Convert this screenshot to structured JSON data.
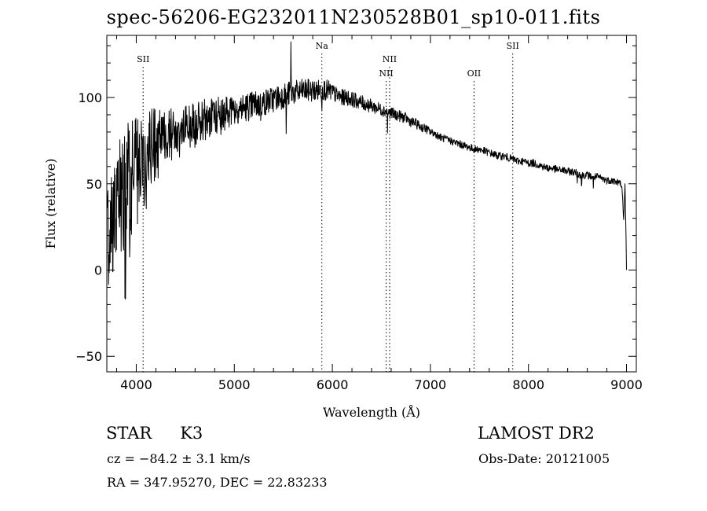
{
  "chart_data": {
    "type": "line",
    "title": "spec-56206-EG232011N230528B01_sp10-011.fits",
    "xlabel": "Wavelength (Å)",
    "ylabel": "Flux (relative)",
    "xlim": [
      3700,
      9100
    ],
    "ylim": [
      -59,
      136
    ],
    "xticks": [
      4000,
      5000,
      6000,
      7000,
      8000,
      9000
    ],
    "yticks": [
      -50,
      0,
      50,
      100
    ],
    "grid": false,
    "line_color": "#000000",
    "lines": [
      {
        "label": "SII",
        "x": 4070,
        "label_row": 1
      },
      {
        "label": "Na",
        "x": 5893,
        "label_row": 0
      },
      {
        "label": "NII",
        "x": 6549,
        "label_row": 2
      },
      {
        "label": "NII",
        "x": 6584,
        "label_row": 1
      },
      {
        "label": "OII",
        "x": 7445,
        "label_row": 2
      },
      {
        "label": "SII",
        "x": 7840,
        "label_row": 0
      }
    ],
    "series": [
      {
        "x": [
          3700,
          3725,
          3750,
          3775,
          3800,
          3825,
          3850,
          3875,
          3900,
          3925,
          3950,
          3975,
          4000,
          4025,
          4050,
          4075,
          4100,
          4150,
          4200,
          4250,
          4300,
          4350,
          4400,
          4450,
          4500,
          4550,
          4600,
          4650,
          4700,
          4750,
          4800,
          4850,
          4900,
          4950,
          5000,
          5050,
          5100,
          5150,
          5200,
          5250,
          5300,
          5350,
          5400,
          5450,
          5500,
          5550,
          5600,
          5650,
          5700,
          5750,
          5800,
          5850,
          5900,
          5950,
          6000,
          6050,
          6100,
          6150,
          6200,
          6250,
          6300,
          6350,
          6400,
          6450,
          6500,
          6550,
          6600,
          6650,
          6700,
          6750,
          6800,
          6850,
          6900,
          6950,
          7000,
          7050,
          7100,
          7150,
          7200,
          7250,
          7300,
          7350,
          7400,
          7450,
          7500,
          7550,
          7600,
          7650,
          7700,
          7750,
          7800,
          7850,
          7900,
          7950,
          8000,
          8050,
          8100,
          8150,
          8200,
          8250,
          8300,
          8350,
          8400,
          8450,
          8500,
          8550,
          8600,
          8650,
          8700,
          8750,
          8800,
          8850,
          8900,
          8950,
          9000
        ],
        "values": [
          18,
          25,
          32,
          30,
          38,
          40,
          45,
          42,
          48,
          55,
          52,
          57,
          60,
          58,
          62,
          65,
          68,
          70,
          72,
          74,
          76,
          78,
          79,
          80,
          81,
          83,
          84,
          86,
          87,
          88,
          89,
          90,
          91,
          92,
          93,
          94,
          94,
          95,
          96,
          96,
          97,
          98,
          99,
          100,
          101,
          102,
          103,
          103,
          104,
          104,
          104,
          104,
          105,
          104,
          103,
          101,
          100,
          100,
          99,
          98,
          97,
          96,
          95,
          94,
          93,
          92,
          91,
          90,
          89,
          88,
          86,
          85,
          83,
          82,
          80,
          79,
          77,
          76,
          75,
          74,
          73,
          72,
          71,
          70,
          70,
          69,
          68,
          67,
          66,
          66,
          65,
          64,
          63,
          63,
          62,
          62,
          61,
          60,
          59,
          59,
          58,
          58,
          57,
          57,
          56,
          55,
          55,
          54,
          54,
          53,
          52,
          52,
          51,
          50,
          0
        ]
      }
    ]
  },
  "info": {
    "obj_class": "STAR",
    "subclass": "K3",
    "survey": "LAMOST DR2",
    "cz_text": "cz = −84.2 ± 3.1 km/s",
    "obs_date": "Obs-Date: 20121005",
    "coords": "RA = 347.95270, DEC =  22.83233"
  }
}
